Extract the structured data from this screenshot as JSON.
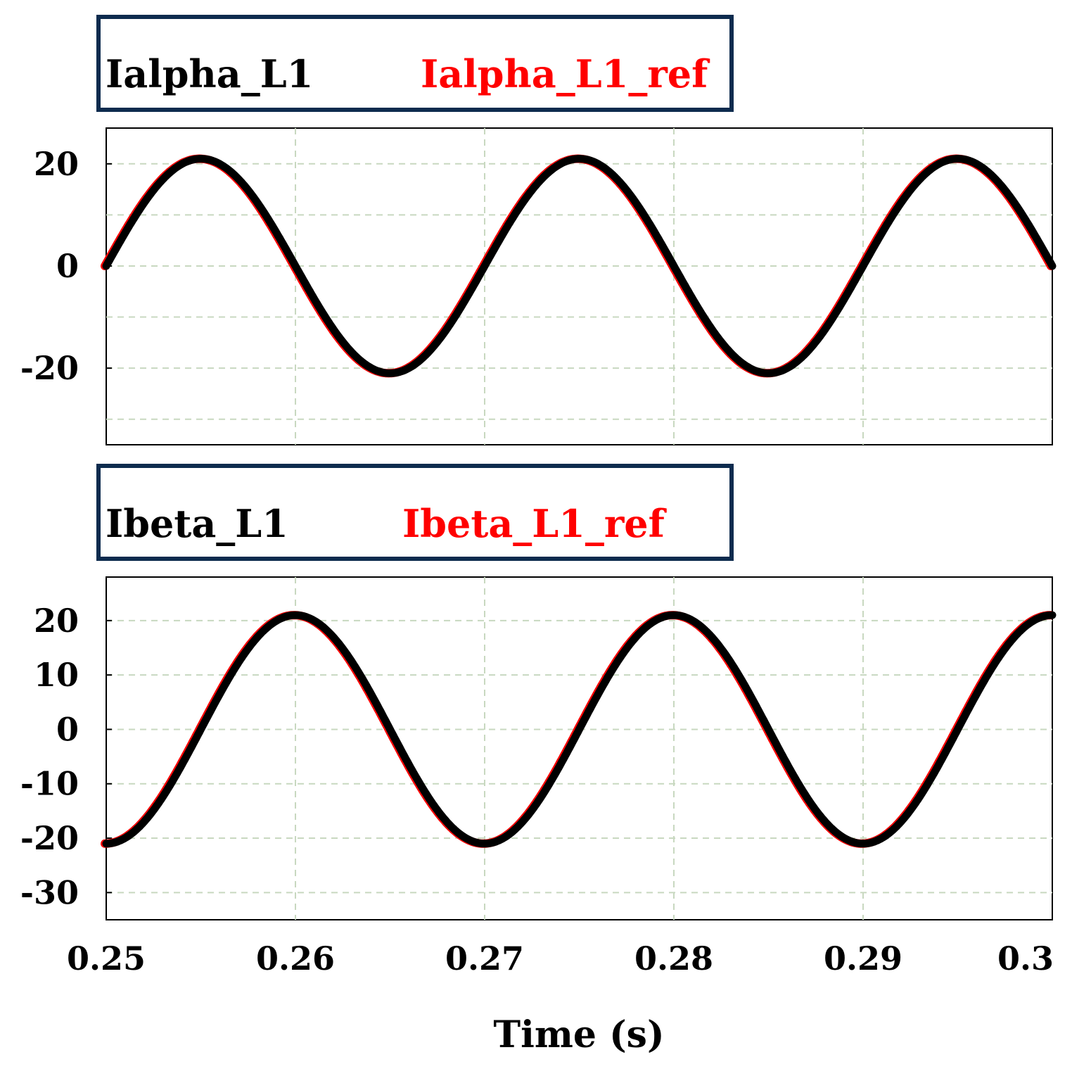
{
  "chart_data": [
    {
      "type": "line",
      "panel": "top",
      "legend": [
        "Ialpha_L1",
        "Ialpha_L1_ref"
      ],
      "series": [
        {
          "name": "Ialpha_L1",
          "color": "#000000",
          "amplitude": 21,
          "frequency_hz": 50,
          "phase_deg": 180
        },
        {
          "name": "Ialpha_L1_ref",
          "color": "#ff0000",
          "amplitude": 21,
          "frequency_hz": 50,
          "phase_deg": 180
        }
      ],
      "xlim": [
        0.25,
        0.3
      ],
      "ylim": [
        -35,
        27
      ],
      "yticks": [
        -20,
        0,
        20
      ],
      "ytick_labels": [
        "-20",
        "0",
        "20"
      ],
      "ygrid": [
        -30,
        -20,
        -10,
        0,
        10,
        20
      ],
      "grid": true
    },
    {
      "type": "line",
      "panel": "bottom",
      "legend": [
        "Ibeta_L1",
        "Ibeta_L1_ref"
      ],
      "series": [
        {
          "name": "Ibeta_L1",
          "color": "#000000",
          "amplitude": 21,
          "frequency_hz": 50,
          "phase_deg": 90
        },
        {
          "name": "Ibeta_L1_ref",
          "color": "#ff0000",
          "amplitude": 21,
          "frequency_hz": 50,
          "phase_deg": 90
        }
      ],
      "xlim": [
        0.25,
        0.3
      ],
      "ylim": [
        -35,
        28
      ],
      "yticks": [
        -30,
        -20,
        -10,
        0,
        10,
        20
      ],
      "ytick_labels": [
        "-30",
        "-20",
        "-10",
        "0",
        "10",
        "20"
      ],
      "ygrid": [
        -30,
        -20,
        -10,
        0,
        10,
        20
      ],
      "grid": true
    }
  ],
  "xaxis": {
    "ticks": [
      0.25,
      0.26,
      0.27,
      0.28,
      0.29,
      0.3
    ],
    "tick_labels": [
      "0.25",
      "0.26",
      "0.27",
      "0.28",
      "0.29",
      "0.3"
    ],
    "label": "Time (s)"
  },
  "colors": {
    "frame": "#0d2b4e",
    "grid": "#c8d8c0",
    "black_series": "#000000",
    "red_series": "#ff0000"
  }
}
